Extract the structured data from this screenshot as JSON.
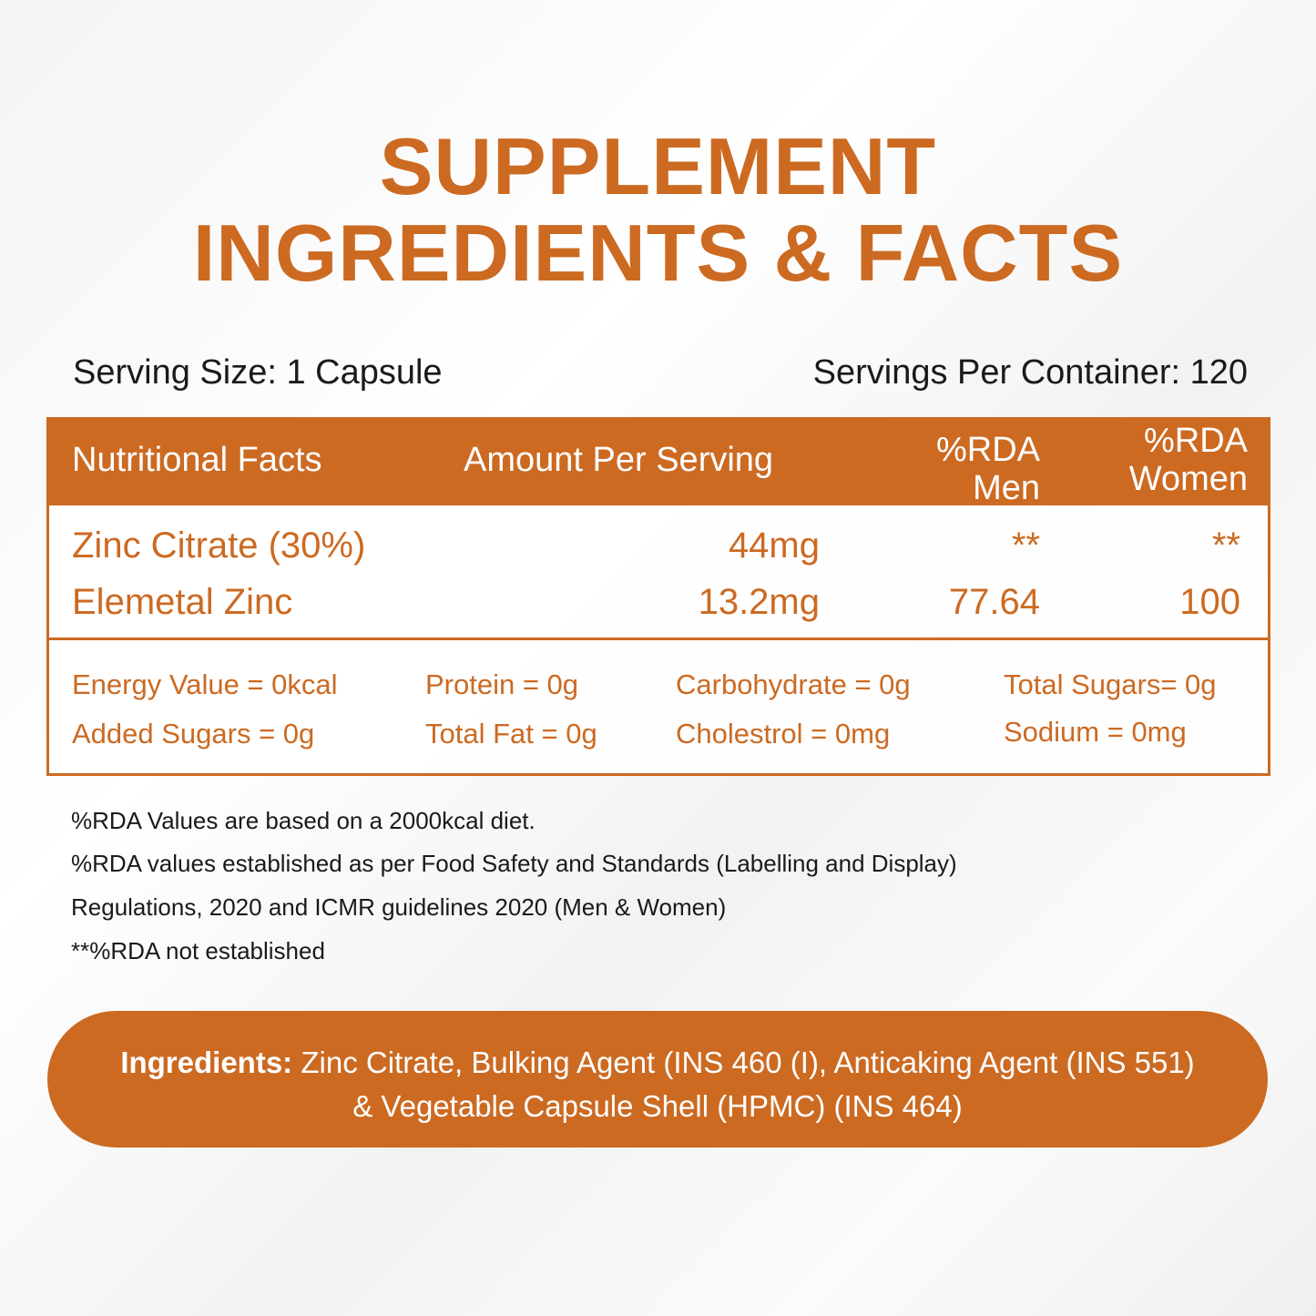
{
  "title": {
    "line1": "SUPPLEMENT",
    "line2": "INGREDIENTS & FACTS"
  },
  "serving": {
    "size": "Serving Size: 1 Capsule",
    "per_container": "Servings Per Container: 120"
  },
  "table": {
    "headers": {
      "facts": "Nutritional Facts",
      "amount": "Amount Per Serving",
      "rda_men_1": "%RDA",
      "rda_men_2": "Men",
      "rda_women_1": "%RDA",
      "rda_women_2": "Women"
    },
    "rows": [
      {
        "name": "Zinc Citrate (30%)",
        "amount": "44mg",
        "men": "**",
        "women": "**"
      },
      {
        "name": "Elemetal Zinc",
        "amount": "13.2mg",
        "men": "77.64",
        "women": "100"
      }
    ],
    "nutrients": [
      [
        "Energy Value = 0kcal",
        "Protein = 0g",
        "Carbohydrate = 0g",
        "Total Sugars= 0g"
      ],
      [
        "Added Sugars = 0g",
        "Total Fat = 0g",
        "Cholestrol = 0mg",
        "Sodium = 0mg"
      ]
    ]
  },
  "footnotes": [
    "%RDA Values are based on a 2000kcal diet.",
    "%RDA values established as per Food Safety and Standards (Labelling and Display)",
    "Regulations, 2020 and ICMR guidelines 2020 (Men & Women)",
    "**%RDA not established"
  ],
  "ingredients": {
    "label": "Ingredients:",
    "line1": " Zinc Citrate, Bulking Agent (INS 460 (I), Anticaking Agent (INS 551)",
    "line2": "& Vegetable Capsule Shell (HPMC) (INS 464)"
  },
  "colors": {
    "accent": "#cc6a22",
    "text": "#1a1a1a"
  }
}
